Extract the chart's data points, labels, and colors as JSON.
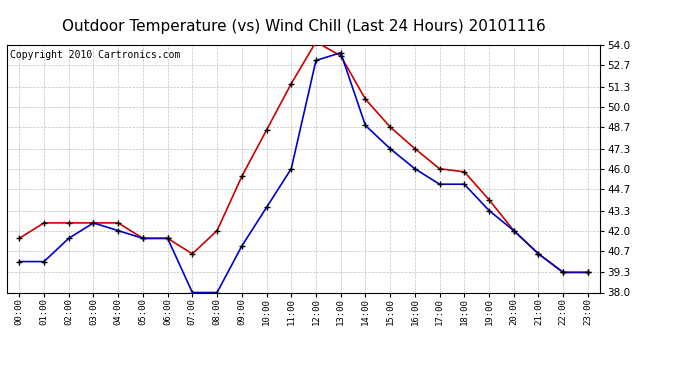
{
  "title": "Outdoor Temperature (vs) Wind Chill (Last 24 Hours) 20101116",
  "copyright": "Copyright 2010 Cartronics.com",
  "hours": [
    "00:00",
    "01:00",
    "02:00",
    "03:00",
    "04:00",
    "05:00",
    "06:00",
    "07:00",
    "08:00",
    "09:00",
    "10:00",
    "11:00",
    "12:00",
    "13:00",
    "14:00",
    "15:00",
    "16:00",
    "17:00",
    "18:00",
    "19:00",
    "20:00",
    "21:00",
    "22:00",
    "23:00"
  ],
  "outdoor_temp": [
    41.5,
    42.5,
    42.5,
    42.5,
    42.5,
    41.5,
    41.5,
    40.5,
    42.0,
    45.5,
    48.5,
    51.5,
    54.2,
    53.3,
    50.5,
    48.7,
    47.3,
    46.0,
    45.8,
    44.0,
    42.0,
    40.5,
    39.3,
    39.3
  ],
  "wind_chill": [
    40.0,
    40.0,
    41.5,
    42.5,
    42.0,
    41.5,
    41.5,
    38.0,
    38.0,
    41.0,
    43.5,
    46.0,
    53.0,
    53.5,
    48.8,
    47.3,
    46.0,
    45.0,
    45.0,
    43.3,
    42.0,
    40.5,
    39.3,
    39.3
  ],
  "ylim": [
    38.0,
    54.0
  ],
  "yticks": [
    38.0,
    39.3,
    40.7,
    42.0,
    43.3,
    44.7,
    46.0,
    47.3,
    48.7,
    50.0,
    51.3,
    52.7,
    54.0
  ],
  "outdoor_color": "#cc0000",
  "windchill_color": "#0000cc",
  "bg_color": "#ffffff",
  "plot_bg_color": "#ffffff",
  "grid_color": "#c0c0c0",
  "title_fontsize": 11,
  "copyright_fontsize": 7
}
